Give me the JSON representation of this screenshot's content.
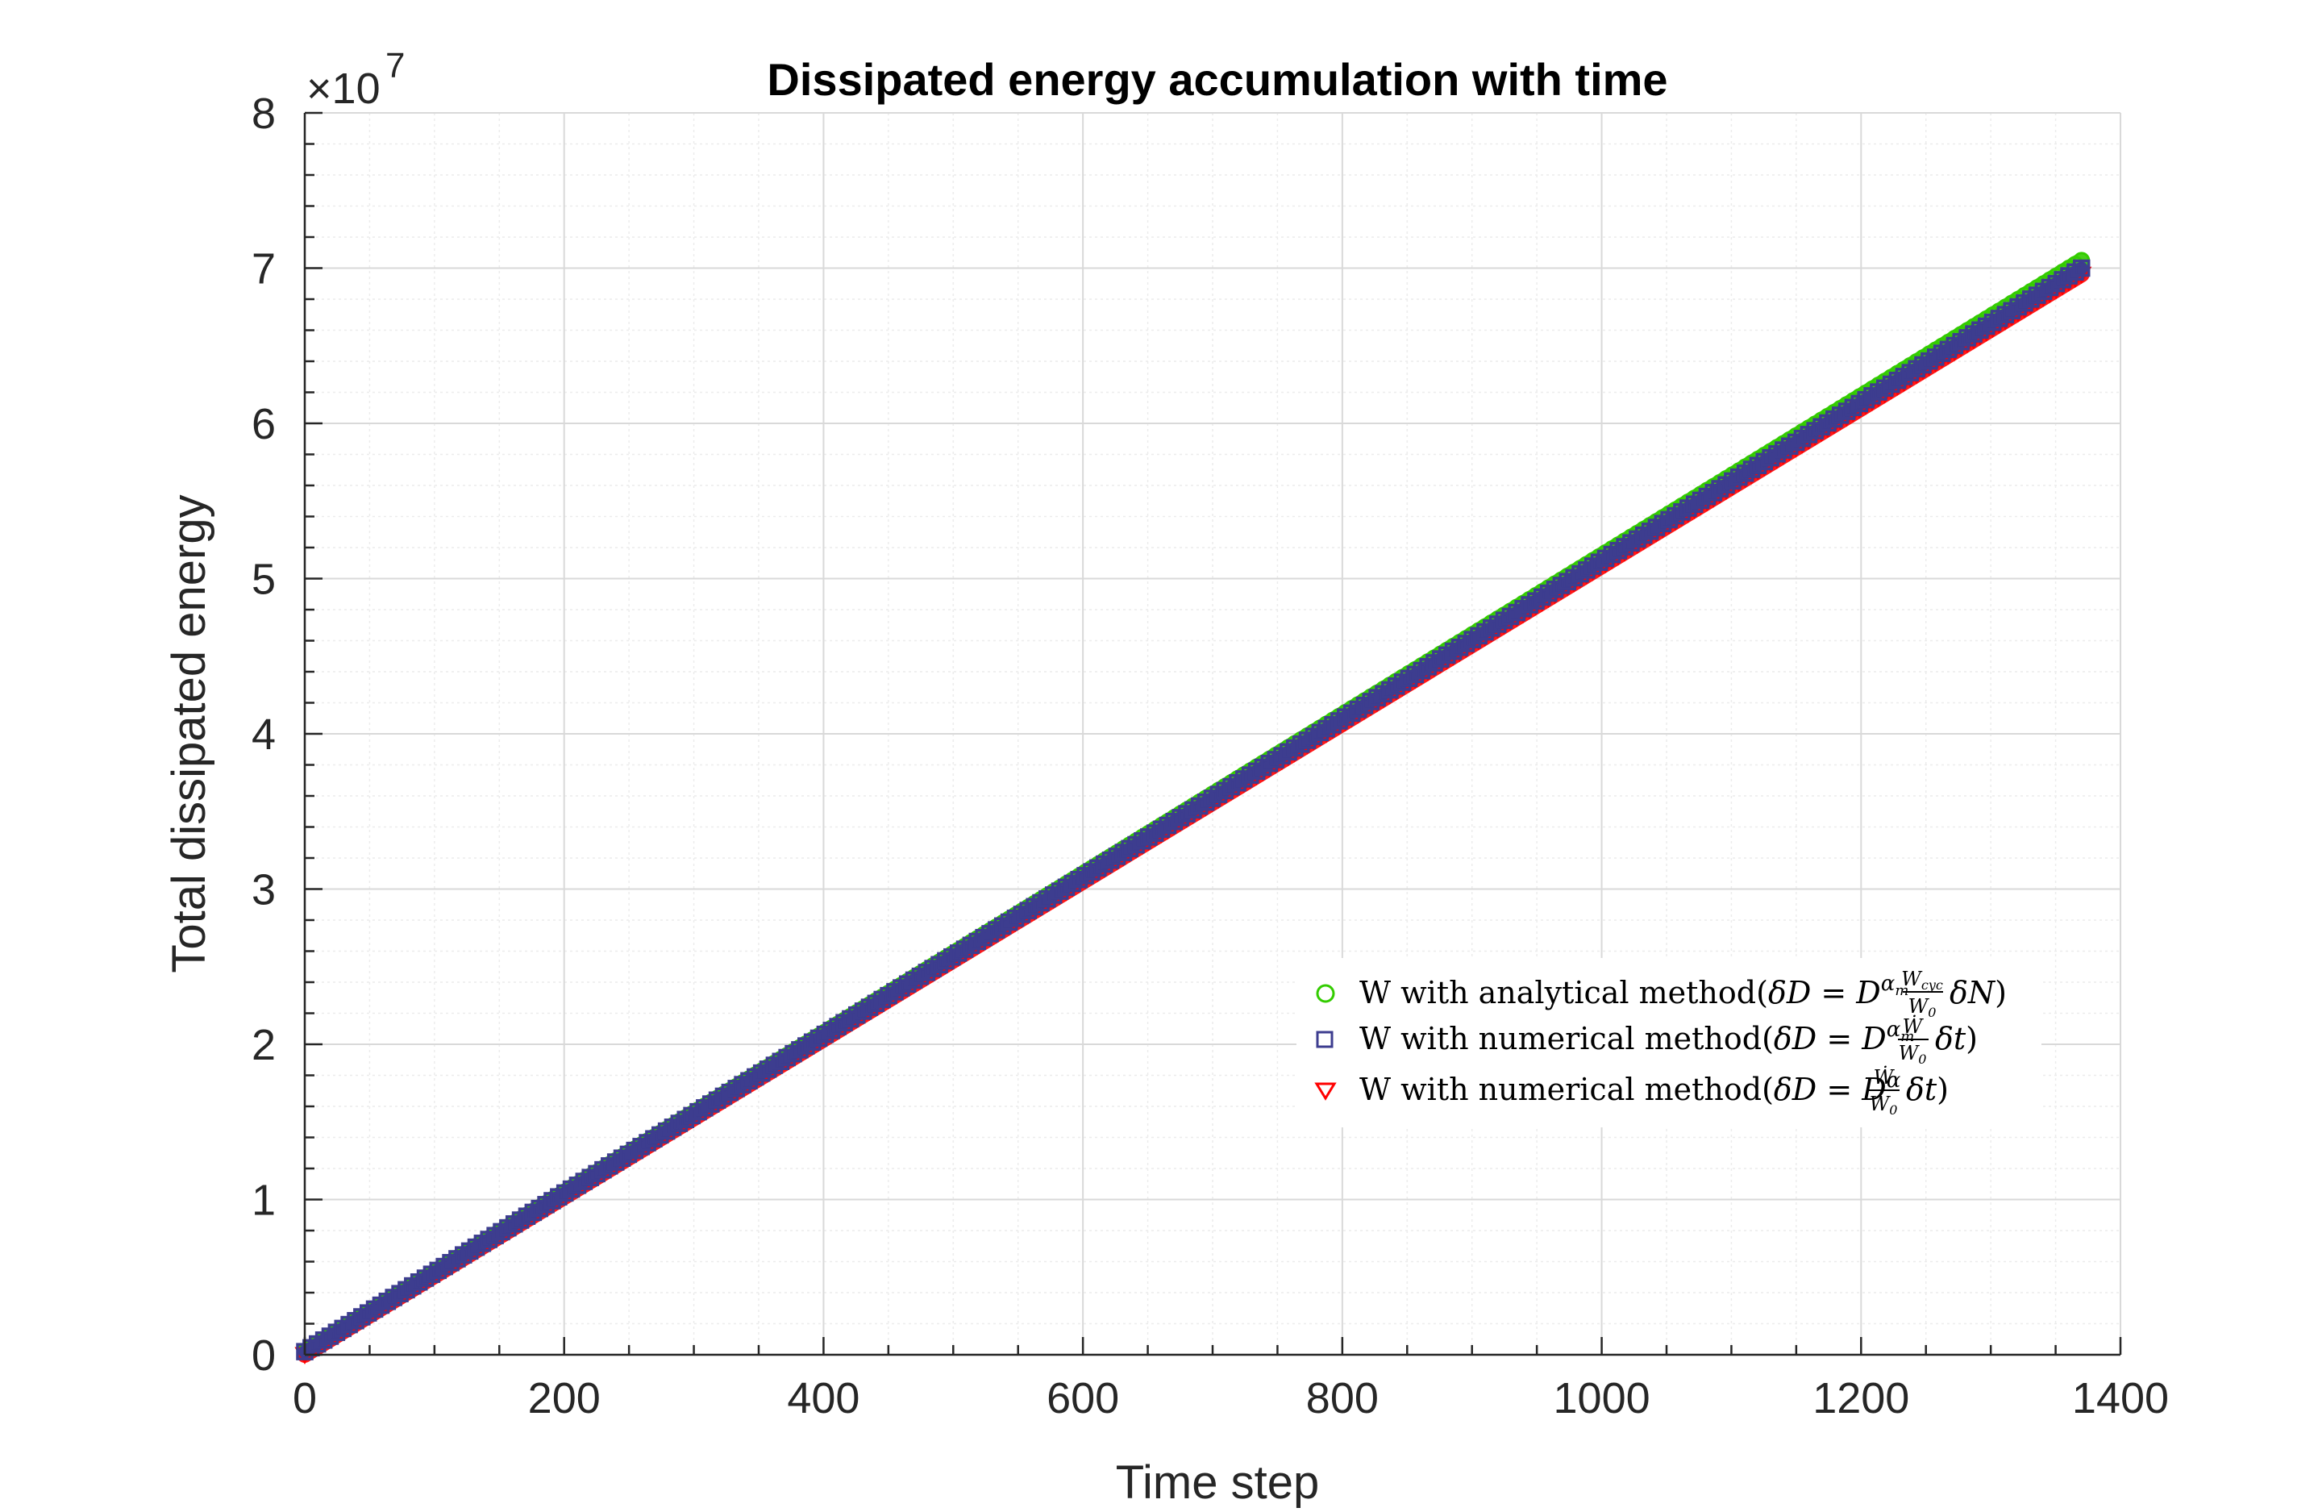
{
  "chart_data": {
    "type": "scatter",
    "title": "Dissipated energy accumulation with time",
    "xlabel": "Time step",
    "ylabel": "Total dissipated energy",
    "y_exponent_label": "×10",
    "y_exponent_power": "7",
    "xlim": [
      0,
      1400
    ],
    "ylim": [
      0,
      8
    ],
    "y_scale_factor": 10000000,
    "x_ticks": [
      "0",
      "200",
      "400",
      "600",
      "800",
      "1000",
      "1200",
      "1400"
    ],
    "y_ticks": [
      "0",
      "1",
      "2",
      "3",
      "4",
      "5",
      "6",
      "7",
      "8"
    ],
    "grid": true,
    "minor_grid": true,
    "legend_position": "lower-right inside",
    "series": [
      {
        "name": "W with analytical method",
        "marker": "circle",
        "color": "#33cc00",
        "x": [
          0,
          1370
        ],
        "y": [
          0.02,
          7.05
        ]
      },
      {
        "name": "W with numerical method",
        "marker": "square",
        "color": "#3d3d8f",
        "x": [
          0,
          1370
        ],
        "y": [
          0.02,
          7.0
        ]
      },
      {
        "name": "W with numerical method",
        "marker": "triangle-down",
        "color": "#ff0000",
        "x": [
          0,
          1370
        ],
        "y": [
          0.0,
          6.96
        ]
      }
    ]
  },
  "legend": {
    "items": [
      {
        "prefix": "W with analytical method(",
        "formula": "δD = D^{αm} (Wcyc/W0) δN",
        "suffix": ")"
      },
      {
        "prefix": "W with numerical method(",
        "formula": "δD = D^{αm} (Ẇ/W0) δt",
        "suffix": ")"
      },
      {
        "prefix": "W with numerical method(",
        "formula": "δD = D^{α} (Ẇ/W0) δt",
        "suffix": ")"
      }
    ]
  },
  "colors": {
    "axis": "#262626",
    "grid": "#d9d9d9",
    "green": "#33cc00",
    "navy": "#3d3d8f",
    "red": "#ff0000"
  }
}
